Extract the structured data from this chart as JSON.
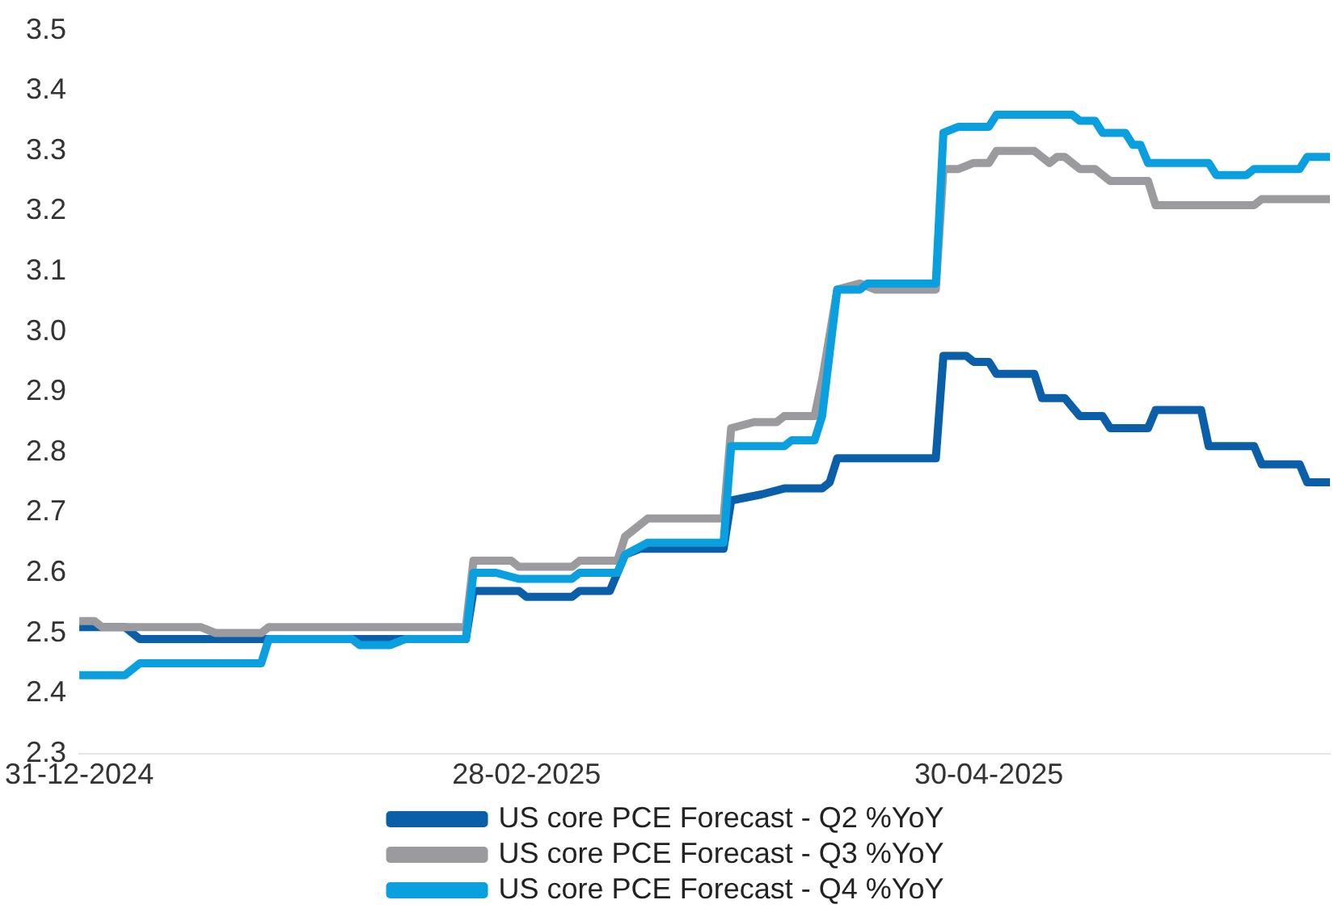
{
  "chart_data": {
    "type": "line",
    "xlim": [
      "2024-12-31",
      "2025-06-14"
    ],
    "xticks": [
      {
        "value": "2024-12-31",
        "label": "31-12-2024"
      },
      {
        "value": "2025-02-28",
        "label": "28-02-2025"
      },
      {
        "value": "2025-04-30",
        "label": "30-04-2025"
      }
    ],
    "ylim": [
      2.3,
      3.5
    ],
    "yticks": [
      2.3,
      2.4,
      2.5,
      2.6,
      2.7,
      2.8,
      2.9,
      {
        "value": 3,
        "label": "3.0"
      },
      3.1,
      3.2,
      3.3,
      3.4,
      3.5
    ],
    "grid": false,
    "legend": "bottom",
    "marker": "none",
    "line_style": "solid",
    "series": [
      {
        "name": "US core PCE Forecast - Q2 %YoY",
        "color": "#0b5ea8",
        "x": [
          "2024-12-31",
          "2025-01-06",
          "2025-01-08",
          "2025-02-20",
          "2025-02-21",
          "2025-02-27",
          "2025-02-28",
          "2025-03-06",
          "2025-03-07",
          "2025-03-11",
          "2025-03-13",
          "2025-03-15",
          "2025-03-26",
          "2025-03-27",
          "2025-03-31",
          "2025-04-03",
          "2025-04-08",
          "2025-04-09",
          "2025-04-10",
          "2025-04-23",
          "2025-04-24",
          "2025-04-27",
          "2025-04-28",
          "2025-04-30",
          "2025-05-01",
          "2025-05-06",
          "2025-05-07",
          "2025-05-10",
          "2025-05-12",
          "2025-05-15",
          "2025-05-16",
          "2025-05-21",
          "2025-05-22",
          "2025-05-28",
          "2025-05-29",
          "2025-06-04",
          "2025-06-05",
          "2025-06-10",
          "2025-06-11",
          "2025-06-14"
        ],
        "values": [
          2.51,
          2.51,
          2.49,
          2.49,
          2.57,
          2.57,
          2.56,
          2.56,
          2.57,
          2.57,
          2.63,
          2.64,
          2.64,
          2.72,
          2.73,
          2.74,
          2.74,
          2.75,
          2.79,
          2.79,
          2.96,
          2.96,
          2.95,
          2.95,
          2.93,
          2.93,
          2.89,
          2.89,
          2.86,
          2.86,
          2.84,
          2.84,
          2.87,
          2.87,
          2.81,
          2.81,
          2.78,
          2.78,
          2.75,
          2.75
        ]
      },
      {
        "name": "US core PCE Forecast - Q3 %YoY",
        "color": "#9b9b9f",
        "x": [
          "2024-12-31",
          "2025-01-02",
          "2025-01-03",
          "2025-01-16",
          "2025-01-18",
          "2025-01-24",
          "2025-01-25",
          "2025-02-20",
          "2025-02-21",
          "2025-02-26",
          "2025-02-27",
          "2025-03-06",
          "2025-03-07",
          "2025-03-12",
          "2025-03-13",
          "2025-03-16",
          "2025-03-26",
          "2025-03-27",
          "2025-03-30",
          "2025-04-02",
          "2025-04-03",
          "2025-04-07",
          "2025-04-08",
          "2025-04-10",
          "2025-04-13",
          "2025-04-15",
          "2025-04-23",
          "2025-04-24",
          "2025-04-26",
          "2025-04-28",
          "2025-04-30",
          "2025-05-01",
          "2025-05-06",
          "2025-05-08",
          "2025-05-09",
          "2025-05-10",
          "2025-05-12",
          "2025-05-14",
          "2025-05-16",
          "2025-05-21",
          "2025-05-22",
          "2025-06-04",
          "2025-06-05",
          "2025-06-14"
        ],
        "values": [
          2.52,
          2.52,
          2.51,
          2.51,
          2.5,
          2.5,
          2.51,
          2.51,
          2.62,
          2.62,
          2.61,
          2.61,
          2.62,
          2.62,
          2.66,
          2.69,
          2.69,
          2.84,
          2.85,
          2.85,
          2.86,
          2.86,
          2.92,
          3.07,
          3.08,
          3.07,
          3.07,
          3.27,
          3.27,
          3.28,
          3.28,
          3.3,
          3.3,
          3.28,
          3.29,
          3.29,
          3.27,
          3.27,
          3.25,
          3.25,
          3.21,
          3.21,
          3.22,
          3.22
        ]
      },
      {
        "name": "US core PCE Forecast - Q4 %YoY",
        "color": "#0aa0e0",
        "x": [
          "2024-12-31",
          "2025-01-06",
          "2025-01-08",
          "2025-01-24",
          "2025-01-25",
          "2025-02-05",
          "2025-02-06",
          "2025-02-10",
          "2025-02-12",
          "2025-02-20",
          "2025-02-21",
          "2025-02-24",
          "2025-02-27",
          "2025-03-06",
          "2025-03-07",
          "2025-03-12",
          "2025-03-13",
          "2025-03-16",
          "2025-03-26",
          "2025-03-27",
          "2025-04-03",
          "2025-04-04",
          "2025-04-07",
          "2025-04-08",
          "2025-04-10",
          "2025-04-13",
          "2025-04-14",
          "2025-04-23",
          "2025-04-24",
          "2025-04-26",
          "2025-04-30",
          "2025-05-01",
          "2025-05-11",
          "2025-05-12",
          "2025-05-14",
          "2025-05-15",
          "2025-05-18",
          "2025-05-19",
          "2025-05-20",
          "2025-05-21",
          "2025-05-29",
          "2025-05-30",
          "2025-06-03",
          "2025-06-04",
          "2025-06-10",
          "2025-06-11",
          "2025-06-14"
        ],
        "values": [
          2.43,
          2.43,
          2.45,
          2.45,
          2.49,
          2.49,
          2.48,
          2.48,
          2.49,
          2.49,
          2.6,
          2.6,
          2.59,
          2.59,
          2.6,
          2.6,
          2.63,
          2.65,
          2.65,
          2.81,
          2.81,
          2.82,
          2.82,
          2.86,
          3.07,
          3.07,
          3.08,
          3.08,
          3.33,
          3.34,
          3.34,
          3.36,
          3.36,
          3.35,
          3.35,
          3.33,
          3.33,
          3.31,
          3.31,
          3.28,
          3.28,
          3.26,
          3.26,
          3.27,
          3.27,
          3.29,
          3.29
        ]
      }
    ]
  }
}
